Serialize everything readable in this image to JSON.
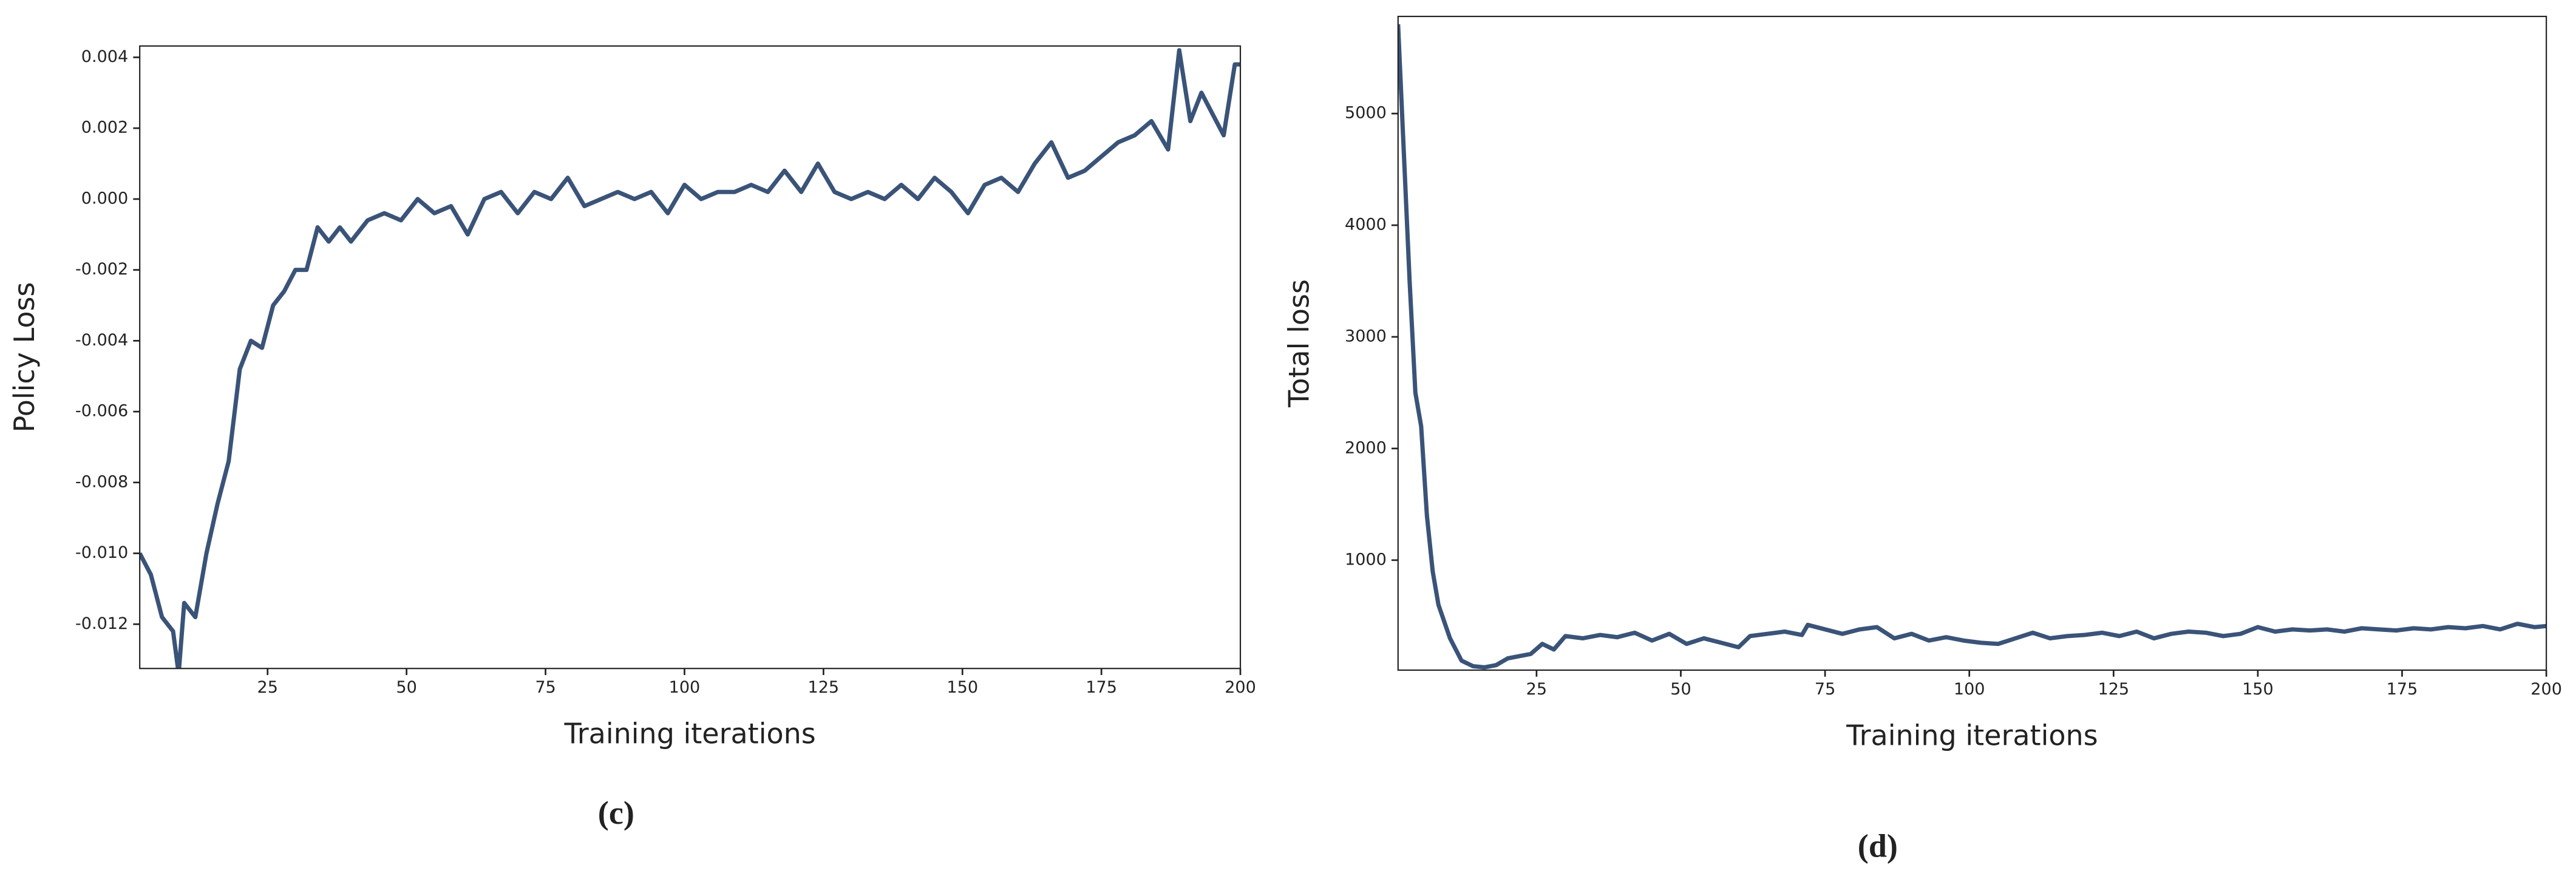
{
  "chart_data": [
    {
      "type": "line",
      "ylabel": "Policy Loss",
      "xlabel": "Training iterations",
      "panel_label": "(c)",
      "color": "#3a5378",
      "x": [
        2,
        4,
        6,
        8,
        9,
        10,
        12,
        14,
        16,
        18,
        20,
        22,
        24,
        26,
        28,
        30,
        32,
        34,
        36,
        38,
        40,
        43,
        46,
        49,
        52,
        55,
        58,
        61,
        64,
        67,
        70,
        73,
        76,
        79,
        82,
        85,
        88,
        91,
        94,
        97,
        100,
        103,
        106,
        109,
        112,
        115,
        118,
        121,
        124,
        127,
        130,
        133,
        136,
        139,
        142,
        145,
        148,
        151,
        154,
        157,
        160,
        163,
        166,
        169,
        172,
        175,
        178,
        181,
        184,
        187,
        189,
        191,
        193,
        195,
        197,
        199,
        200
      ],
      "values": [
        -0.01,
        -0.0106,
        -0.0118,
        -0.0122,
        -0.0134,
        -0.0114,
        -0.0118,
        -0.01,
        -0.0086,
        -0.0074,
        -0.0048,
        -0.004,
        -0.0042,
        -0.003,
        -0.0026,
        -0.002,
        -0.002,
        -0.0008,
        -0.0012,
        -0.0008,
        -0.0012,
        -0.0006,
        -0.0004,
        -0.0006,
        0.0,
        -0.0004,
        -0.0002,
        -0.001,
        0.0,
        0.0002,
        -0.0004,
        0.0002,
        0.0,
        0.0006,
        -0.0002,
        0.0,
        0.0002,
        0.0,
        0.0002,
        -0.0004,
        0.0004,
        0.0,
        0.0002,
        0.0002,
        0.0004,
        0.0002,
        0.0008,
        0.0002,
        0.001,
        0.0002,
        0.0,
        0.0002,
        0.0,
        0.0004,
        0.0,
        0.0006,
        0.0002,
        -0.0004,
        0.0004,
        0.0006,
        0.0002,
        0.001,
        0.0016,
        0.0006,
        0.0008,
        0.0012,
        0.0016,
        0.0018,
        0.0022,
        0.0014,
        0.0042,
        0.0022,
        0.003,
        0.0024,
        0.0018,
        0.0038,
        0.0038
      ],
      "xlim": [
        2,
        200
      ],
      "xticks": [
        25,
        50,
        75,
        100,
        125,
        150,
        175,
        200
      ],
      "ylim": [
        -0.01325,
        0.00432
      ],
      "yticks": [
        {
          "value": -0.012,
          "label": "-0.012"
        },
        {
          "value": -0.01,
          "label": "-0.010"
        },
        -0.008,
        -0.006,
        -0.004,
        -0.002,
        {
          "value": 0,
          "label": "0.000"
        },
        0.002,
        0.004
      ]
    },
    {
      "type": "line",
      "ylabel": "Total loss",
      "xlabel": "Training iterations",
      "panel_label": "(d)",
      "color": "#3a5378",
      "x": [
        1,
        3,
        4,
        5,
        6,
        7,
        8,
        10,
        12,
        14,
        16,
        18,
        20,
        22,
        24,
        26,
        28,
        30,
        33,
        36,
        39,
        42,
        45,
        48,
        51,
        54,
        57,
        60,
        62,
        65,
        68,
        71,
        72,
        75,
        78,
        81,
        84,
        87,
        90,
        93,
        96,
        99,
        102,
        105,
        108,
        111,
        114,
        117,
        120,
        123,
        126,
        129,
        132,
        135,
        138,
        141,
        144,
        147,
        150,
        153,
        156,
        159,
        162,
        165,
        168,
        171,
        174,
        177,
        180,
        183,
        186,
        189,
        192,
        195,
        198,
        200
      ],
      "values": [
        5800,
        3500,
        2500,
        2200,
        1400,
        900,
        600,
        300,
        100,
        50,
        40,
        60,
        120,
        140,
        160,
        250,
        200,
        320,
        300,
        330,
        310,
        350,
        280,
        340,
        250,
        300,
        260,
        220,
        320,
        340,
        360,
        330,
        420,
        380,
        340,
        380,
        400,
        300,
        340,
        280,
        310,
        280,
        260,
        250,
        300,
        350,
        300,
        320,
        330,
        350,
        320,
        360,
        300,
        340,
        360,
        350,
        320,
        340,
        400,
        360,
        380,
        370,
        380,
        360,
        390,
        380,
        370,
        390,
        380,
        400,
        390,
        410,
        380,
        430,
        400,
        410
      ],
      "xlim": [
        1,
        200
      ],
      "xticks": [
        25,
        50,
        75,
        100,
        125,
        150,
        175,
        200
      ],
      "ylim": [
        15,
        5870
      ],
      "yticks": [
        1000,
        2000,
        3000,
        4000,
        5000
      ]
    }
  ]
}
